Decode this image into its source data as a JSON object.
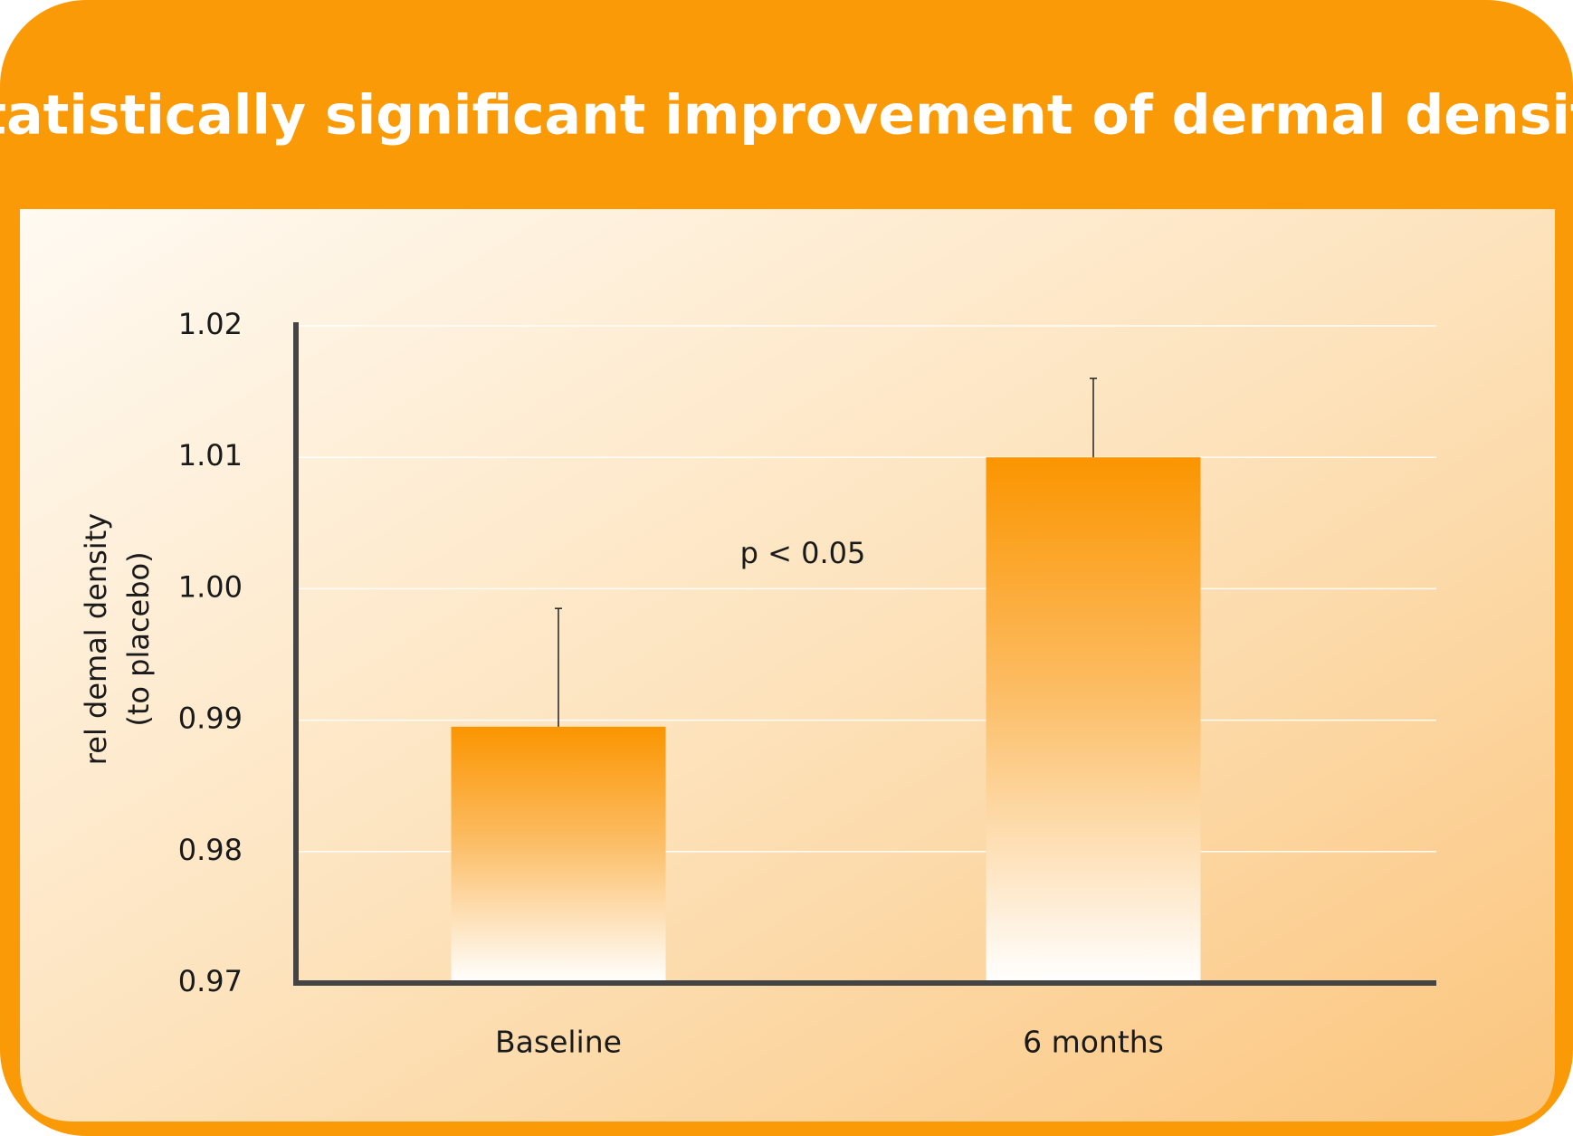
{
  "chart_data": {
    "type": "bar",
    "title": "Statistically significant improvement  of dermal density",
    "ylabel": [
      "rel demal density",
      "(to placebo)"
    ],
    "annotation": "p < 0.05",
    "categories": [
      "Baseline",
      "6 months"
    ],
    "values": [
      0.9895,
      1.01
    ],
    "errors": [
      0.009,
      0.006
    ],
    "color": "#fb9500",
    "ylim": [
      0.97,
      1.02
    ],
    "yticks": [
      1.02,
      1.01,
      {
        "value": 1,
        "label": "1.00"
      },
      0.99,
      0.98,
      0.97
    ],
    "grid": true
  }
}
